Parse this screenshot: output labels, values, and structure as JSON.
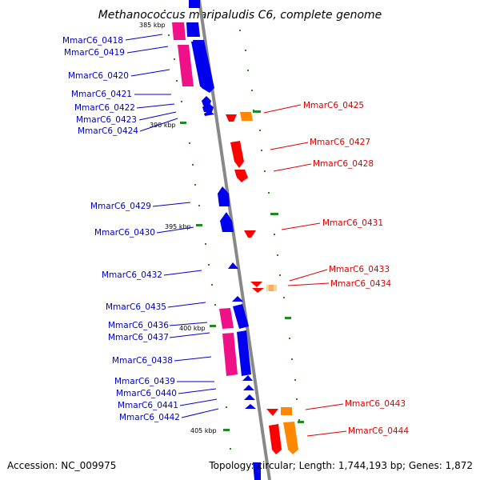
{
  "title": "Methanococcus maripaludis C6, complete genome",
  "footer": {
    "accession": "Accession: NC_009975",
    "summary": "Topology: circular; Length: 1,744,193 bp; Genes: 1,872"
  },
  "colors": {
    "left_label": "#0000cc",
    "right_label": "#dd0000",
    "forward_cds": "#0000ee",
    "reverse_cds": "#ff0000",
    "magenta_feature": "#ee1188",
    "orange_feature": "#ff8800",
    "pale_feature": "#eedd88",
    "tick": "#228822",
    "backbone": "#888888"
  },
  "ticks": [
    "385 kbp",
    "390 kbp",
    "395 kbp",
    "400 kbp",
    "405 kbp"
  ],
  "left_labels": [
    "MmarC6_0418",
    "MmarC6_0419",
    "MmarC6_0420",
    "MmarC6_0421",
    "MmarC6_0422",
    "MmarC6_0423",
    "MmarC6_0424",
    "MmarC6_0429",
    "MmarC6_0430",
    "MmarC6_0432",
    "MmarC6_0435",
    "MmarC6_0436",
    "MmarC6_0437",
    "MmarC6_0438",
    "MmarC6_0439",
    "MmarC6_0440",
    "MmarC6_0441",
    "MmarC6_0442"
  ],
  "right_labels": [
    "MmarC6_0425",
    "MmarC6_0427",
    "MmarC6_0428",
    "MmarC6_0431",
    "MmarC6_0433",
    "MmarC6_0434",
    "MmarC6_0443",
    "MmarC6_0444"
  ]
}
